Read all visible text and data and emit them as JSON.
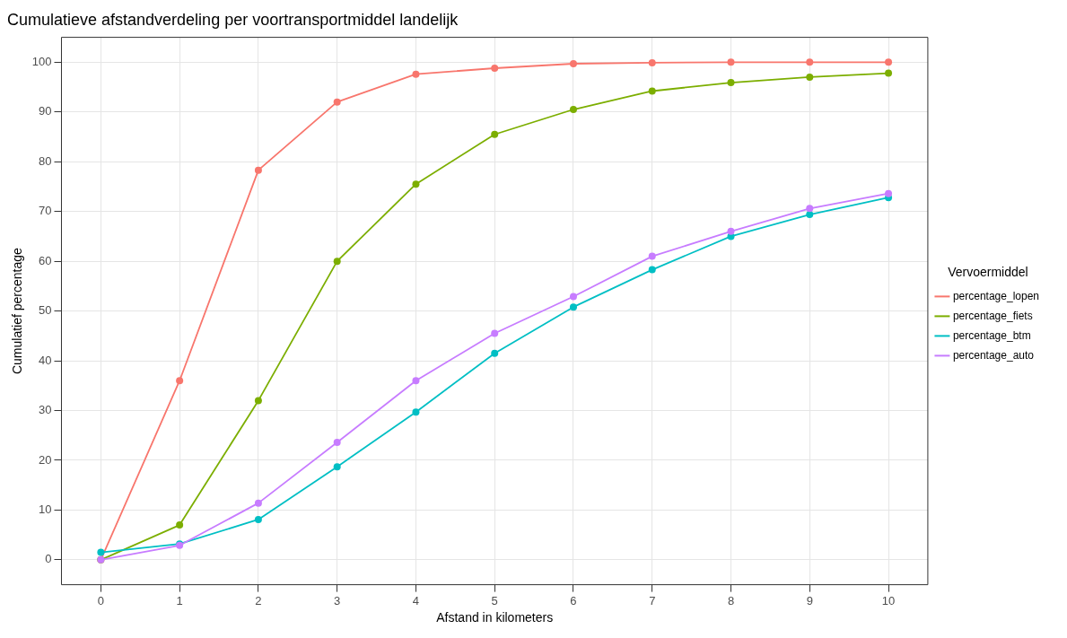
{
  "chart_data": {
    "type": "line",
    "title": "Cumulatieve afstandverdeling per voortransportmiddel landelijk",
    "xlabel": "Afstand in kilometers",
    "ylabel": "Cumulatief percentage",
    "legend_title": "Vervoermiddel",
    "legend": "right",
    "grid": true,
    "marker": "circle",
    "line_style": "solid",
    "x": [
      0,
      1,
      2,
      3,
      4,
      5,
      6,
      7,
      8,
      9,
      10
    ],
    "xlim": [
      -0.5,
      10.5
    ],
    "xticks": [
      0,
      1,
      2,
      3,
      4,
      5,
      6,
      7,
      8,
      9,
      10
    ],
    "ylim": [
      -5,
      105
    ],
    "yticks": [
      0,
      10,
      20,
      30,
      40,
      50,
      60,
      70,
      80,
      90,
      100
    ],
    "series": [
      {
        "name": "percentage_lopen",
        "color": "#f8766d",
        "values": [
          0,
          36,
          78.3,
          92,
          97.6,
          98.8,
          99.7,
          99.9,
          100,
          100,
          100
        ]
      },
      {
        "name": "percentage_fiets",
        "color": "#7cae00",
        "values": [
          0,
          7,
          32,
          60,
          75.5,
          85.5,
          90.5,
          94.2,
          95.9,
          97,
          97.8
        ]
      },
      {
        "name": "percentage_btm",
        "color": "#00bfc4",
        "values": [
          1.5,
          3.2,
          8.1,
          18.7,
          29.7,
          41.5,
          50.8,
          58.3,
          65,
          69.4,
          72.8
        ]
      },
      {
        "name": "percentage_auto",
        "color": "#c77cff",
        "values": [
          0,
          2.9,
          11.4,
          23.6,
          36,
          45.5,
          52.9,
          61,
          66,
          70.6,
          73.6
        ]
      }
    ]
  }
}
